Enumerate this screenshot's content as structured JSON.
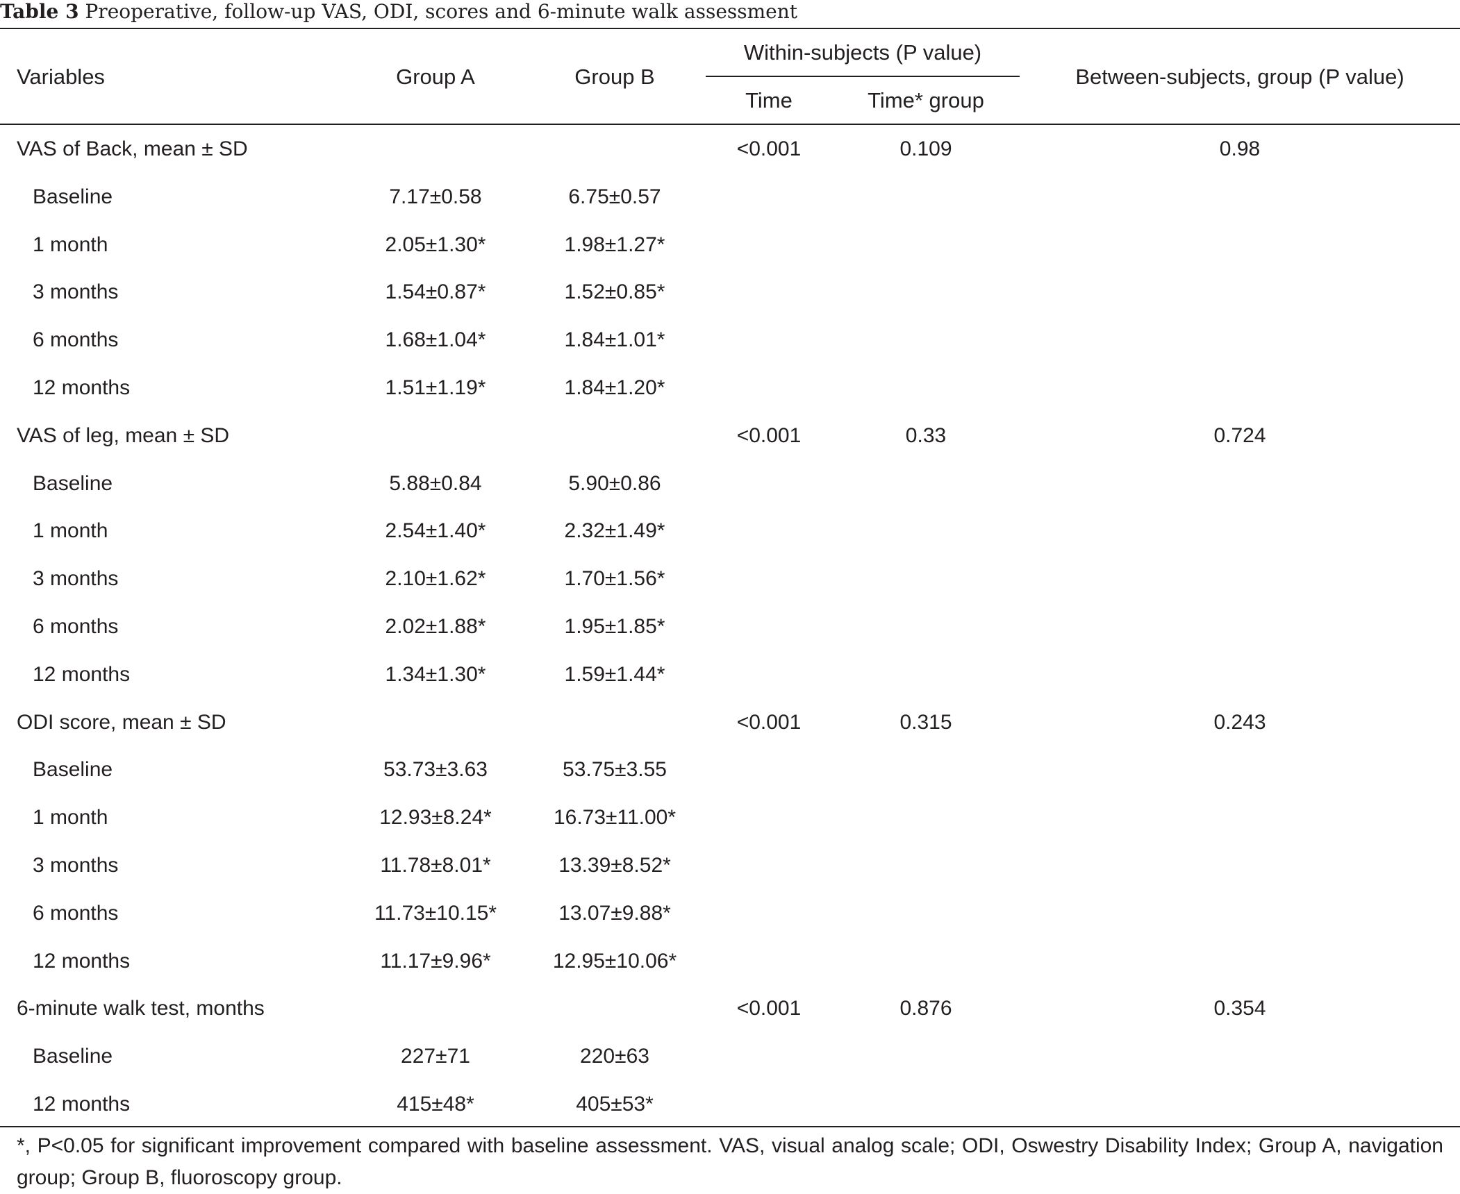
{
  "caption": {
    "label": "Table 3",
    "text": "Preoperative, follow-up VAS, ODI, scores and 6-minute walk assessment"
  },
  "header": {
    "variables": "Variables",
    "group_a": "Group A",
    "group_b": "Group B",
    "within": "Within-subjects (P value)",
    "time": "Time",
    "time_group": "Time* group",
    "between": "Between-subjects, group (P value)"
  },
  "rows": [
    {
      "label": "VAS of Back, mean ± SD",
      "a": "",
      "b": "",
      "time": "<0.001",
      "time_group": "0.109",
      "between": "0.98"
    },
    {
      "label": "Baseline",
      "a": "7.17±0.58",
      "b": "6.75±0.57",
      "time": "",
      "time_group": "",
      "between": ""
    },
    {
      "label": "1 month",
      "a": "2.05±1.30*",
      "b": "1.98±1.27*",
      "time": "",
      "time_group": "",
      "between": ""
    },
    {
      "label": "3 months",
      "a": "1.54±0.87*",
      "b": "1.52±0.85*",
      "time": "",
      "time_group": "",
      "between": ""
    },
    {
      "label": "6 months",
      "a": "1.68±1.04*",
      "b": "1.84±1.01*",
      "time": "",
      "time_group": "",
      "between": ""
    },
    {
      "label": "12 months",
      "a": "1.51±1.19*",
      "b": "1.84±1.20*",
      "time": "",
      "time_group": "",
      "between": ""
    },
    {
      "label": "VAS of leg, mean ± SD",
      "a": "",
      "b": "",
      "time": "<0.001",
      "time_group": "0.33",
      "between": "0.724"
    },
    {
      "label": "Baseline",
      "a": "5.88±0.84",
      "b": "5.90±0.86",
      "time": "",
      "time_group": "",
      "between": ""
    },
    {
      "label": "1 month",
      "a": "2.54±1.40*",
      "b": "2.32±1.49*",
      "time": "",
      "time_group": "",
      "between": ""
    },
    {
      "label": "3 months",
      "a": "2.10±1.62*",
      "b": "1.70±1.56*",
      "time": "",
      "time_group": "",
      "between": ""
    },
    {
      "label": "6 months",
      "a": "2.02±1.88*",
      "b": "1.95±1.85*",
      "time": "",
      "time_group": "",
      "between": ""
    },
    {
      "label": "12 months",
      "a": "1.34±1.30*",
      "b": "1.59±1.44*",
      "time": "",
      "time_group": "",
      "between": ""
    },
    {
      "label": "ODI score, mean ± SD",
      "a": "",
      "b": "",
      "time": "<0.001",
      "time_group": "0.315",
      "between": "0.243"
    },
    {
      "label": "Baseline",
      "a": "53.73±3.63",
      "b": "53.75±3.55",
      "time": "",
      "time_group": "",
      "between": ""
    },
    {
      "label": "1 month",
      "a": "12.93±8.24*",
      "b": "16.73±11.00*",
      "time": "",
      "time_group": "",
      "between": ""
    },
    {
      "label": "3 months",
      "a": "11.78±8.01*",
      "b": "13.39±8.52*",
      "time": "",
      "time_group": "",
      "between": ""
    },
    {
      "label": "6 months",
      "a": "11.73±10.15*",
      "b": "13.07±9.88*",
      "time": "",
      "time_group": "",
      "between": ""
    },
    {
      "label": "12 months",
      "a": "11.17±9.96*",
      "b": "12.95±10.06*",
      "time": "",
      "time_group": "",
      "between": ""
    },
    {
      "label": "6-minute walk test, months",
      "a": "",
      "b": "",
      "time": "<0.001",
      "time_group": "0.876",
      "between": "0.354"
    },
    {
      "label": "Baseline",
      "a": "227±71",
      "b": "220±63",
      "time": "",
      "time_group": "",
      "between": ""
    },
    {
      "label": "12 months",
      "a": "415±48*",
      "b": "405±53*",
      "time": "",
      "time_group": "",
      "between": ""
    }
  ],
  "footnote": "*, P<0.05 for significant improvement compared with baseline assessment. VAS, visual analog scale; ODI, Oswestry Disability Index; Group A, navigation group; Group B, fluoroscopy group."
}
